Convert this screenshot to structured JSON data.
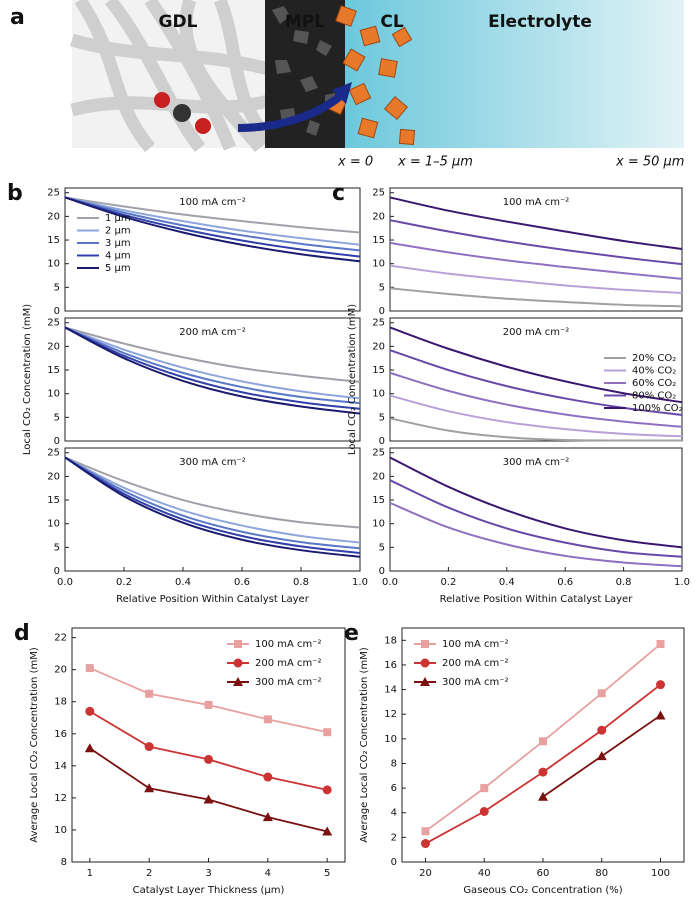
{
  "illustration": {
    "panel": "a",
    "regions": [
      "GDL",
      "MPL",
      "CL",
      "Electrolyte"
    ],
    "positions": [
      "x = 0",
      "x = 1–5 μm",
      "x = 50 μm"
    ]
  },
  "chart_data": [
    {
      "type": "line",
      "panel": "b",
      "title": "100 mA cm⁻²",
      "x": [
        0,
        0.2,
        0.4,
        0.6,
        0.8,
        1
      ],
      "xlim": [
        0,
        1
      ],
      "ylim": [
        0,
        26
      ],
      "yticks": [
        0,
        5,
        10,
        15,
        20,
        25
      ],
      "smooth": true,
      "legend": "upper left",
      "series": [
        {
          "name": "1 μm",
          "color": "#a0a0a8",
          "values": [
            24,
            22.1,
            20.4,
            19.0,
            17.7,
            16.6
          ]
        },
        {
          "name": "2 μm",
          "color": "#8ea6dc",
          "values": [
            24,
            21.3,
            19.0,
            17.0,
            15.4,
            14.0
          ]
        },
        {
          "name": "3 μm",
          "color": "#5a78c8",
          "values": [
            24,
            20.8,
            18.1,
            16.0,
            14.2,
            12.8
          ]
        },
        {
          "name": "4 μm",
          "color": "#3040a8",
          "values": [
            24,
            20.3,
            17.3,
            14.9,
            13.0,
            11.5
          ]
        },
        {
          "name": "5 μm",
          "color": "#1a1a70",
          "values": [
            24,
            19.9,
            16.6,
            14.0,
            12.0,
            10.5
          ]
        }
      ]
    },
    {
      "type": "line",
      "title": "200 mA cm⁻²",
      "y_label": "Local CO₂ Concentration (mM)",
      "x": [
        0,
        0.2,
        0.4,
        0.6,
        0.8,
        1
      ],
      "xlim": [
        0,
        1
      ],
      "ylim": [
        0,
        26
      ],
      "yticks": [
        0,
        5,
        10,
        15,
        20,
        25
      ],
      "smooth": true,
      "series": [
        {
          "color": "#a0a0a8",
          "values": [
            24,
            20.6,
            17.7,
            15.4,
            13.8,
            12.5
          ]
        },
        {
          "color": "#8ea6dc",
          "values": [
            24,
            19.3,
            15.5,
            12.6,
            10.5,
            9.0
          ]
        },
        {
          "color": "#5a78c8",
          "values": [
            24,
            18.6,
            14.4,
            11.4,
            9.3,
            8.0
          ]
        },
        {
          "color": "#3040a8",
          "values": [
            24,
            18.0,
            13.5,
            10.3,
            8.2,
            6.8
          ]
        },
        {
          "color": "#1a1a70",
          "values": [
            24,
            17.5,
            12.7,
            9.4,
            7.3,
            5.8
          ]
        }
      ]
    },
    {
      "type": "line",
      "title": "300 mA cm⁻²",
      "x_label": "Relative Position Within Catalyst Layer",
      "x": [
        0,
        0.2,
        0.4,
        0.6,
        0.8,
        1
      ],
      "xlim": [
        0,
        1
      ],
      "ylim": [
        0,
        26
      ],
      "yticks": [
        0,
        5,
        10,
        15,
        20,
        25
      ],
      "xticks": [
        {
          "value": 0,
          "label": "0.0"
        },
        {
          "value": 0.2,
          "label": "0.2"
        },
        {
          "value": 0.4,
          "label": "0.4"
        },
        {
          "value": 0.6,
          "label": "0.6"
        },
        {
          "value": 0.8,
          "label": "0.8"
        },
        {
          "value": 1,
          "label": "1.0"
        }
      ],
      "smooth": true,
      "series": [
        {
          "color": "#a0a0a8",
          "values": [
            24,
            19.0,
            15.0,
            12.2,
            10.3,
            9.2
          ]
        },
        {
          "color": "#8ea6dc",
          "values": [
            24,
            17.6,
            12.8,
            9.6,
            7.4,
            6.0
          ]
        },
        {
          "color": "#5a78c8",
          "values": [
            24,
            16.9,
            11.7,
            8.3,
            6.1,
            4.8
          ]
        },
        {
          "color": "#3040a8",
          "values": [
            24,
            16.3,
            10.9,
            7.4,
            5.2,
            3.8
          ]
        },
        {
          "color": "#1a1a70",
          "values": [
            24,
            15.8,
            10.2,
            6.6,
            4.4,
            3.0
          ]
        }
      ]
    },
    {
      "type": "line",
      "panel": "c",
      "title": "100 mA cm⁻²",
      "x": [
        0,
        0.2,
        0.4,
        0.6,
        0.8,
        1
      ],
      "xlim": [
        0,
        1
      ],
      "ylim": [
        0,
        26
      ],
      "yticks": [
        0,
        5,
        10,
        15,
        20,
        25
      ],
      "smooth": true,
      "series": [
        {
          "color": "#a0a0a0",
          "values": [
            4.8,
            3.6,
            2.6,
            1.9,
            1.3,
            1.0
          ]
        },
        {
          "color": "#b8a0d8",
          "values": [
            9.6,
            7.9,
            6.6,
            5.4,
            4.5,
            3.8
          ]
        },
        {
          "color": "#9070c0",
          "values": [
            14.4,
            12.4,
            10.7,
            9.3,
            8.0,
            6.8
          ]
        },
        {
          "color": "#6848a8",
          "values": [
            19.2,
            16.8,
            14.7,
            12.9,
            11.3,
            9.9
          ]
        },
        {
          "color": "#3a1870",
          "values": [
            24,
            21.2,
            18.9,
            16.8,
            14.8,
            13.1
          ]
        }
      ]
    },
    {
      "type": "line",
      "title": "200 mA cm⁻²",
      "y_label": "Local CO₂ Concentration (mM)",
      "x": [
        0,
        0.2,
        0.4,
        0.6,
        0.8,
        1
      ],
      "xlim": [
        0,
        1
      ],
      "ylim": [
        0,
        26
      ],
      "yticks": [
        0,
        5,
        10,
        15,
        20,
        25
      ],
      "smooth": true,
      "legend": "upper right",
      "series": [
        {
          "name": "20% CO₂",
          "color": "#a0a0a0",
          "values": [
            4.8,
            2.2,
            0.8,
            0.2,
            0.1,
            0.1
          ]
        },
        {
          "name": "40% CO₂",
          "color": "#b8a0d8",
          "values": [
            9.6,
            6.3,
            4.0,
            2.5,
            1.5,
            1.0
          ]
        },
        {
          "name": "60% CO₂",
          "color": "#9070c0",
          "values": [
            14.4,
            10.6,
            7.7,
            5.6,
            4.1,
            3.0
          ]
        },
        {
          "name": "80% CO₂",
          "color": "#6848a8",
          "values": [
            19.2,
            15.0,
            11.6,
            9.0,
            7.0,
            5.5
          ]
        },
        {
          "name": "100% CO₂",
          "color": "#3a1870",
          "values": [
            24,
            19.5,
            15.7,
            12.6,
            10.1,
            8.2
          ]
        }
      ]
    },
    {
      "type": "line",
      "title": "300 mA cm⁻²",
      "x_label": "Relative Position Within Catalyst Layer",
      "x": [
        0,
        0.2,
        0.4,
        0.6,
        0.8,
        1
      ],
      "xlim": [
        0,
        1
      ],
      "ylim": [
        0,
        26
      ],
      "yticks": [
        0,
        5,
        10,
        15,
        20,
        25
      ],
      "xticks": [
        {
          "value": 0,
          "label": "0.0"
        },
        {
          "value": 0.2,
          "label": "0.2"
        },
        {
          "value": 0.4,
          "label": "0.4"
        },
        {
          "value": 0.6,
          "label": "0.6"
        },
        {
          "value": 0.8,
          "label": "0.8"
        },
        {
          "value": 1,
          "label": "1.0"
        }
      ],
      "smooth": true,
      "series": [
        {
          "color": "#9070c0",
          "values": [
            14.4,
            9.2,
            5.6,
            3.2,
            1.8,
            1.0
          ]
        },
        {
          "color": "#6848a8",
          "values": [
            19.2,
            13.4,
            9.0,
            6.0,
            4.0,
            3.0
          ]
        },
        {
          "color": "#3a1870",
          "values": [
            24,
            17.8,
            12.8,
            9.0,
            6.5,
            5.0
          ]
        }
      ]
    },
    {
      "type": "line",
      "panel": "d",
      "x_label": "Catalyst Layer Thickness (μm)",
      "y_label": "Average Local CO₂ Concentration (mM)",
      "x": [
        1,
        2,
        3,
        4,
        5
      ],
      "xlim": [
        0.7,
        5.3
      ],
      "xticks": [
        1,
        2,
        3,
        4,
        5
      ],
      "ylim": [
        8,
        22.6
      ],
      "yticks": [
        8,
        10,
        12,
        14,
        16,
        18,
        20,
        22
      ],
      "legend": "upper right",
      "series": [
        {
          "name": "100 mA cm⁻²",
          "color": "#e8a0a0",
          "marker": "square",
          "values": [
            20.1,
            18.5,
            17.8,
            16.9,
            16.1
          ]
        },
        {
          "name": "200 mA cm⁻²",
          "color": "#cc3333",
          "marker": "circle",
          "values": [
            17.4,
            15.2,
            14.4,
            13.3,
            12.5
          ]
        },
        {
          "name": "300 mA cm⁻²",
          "color": "#7a1010",
          "marker": "triangle",
          "values": [
            15.1,
            12.6,
            11.9,
            10.8,
            9.9
          ]
        }
      ]
    },
    {
      "type": "line",
      "panel": "e",
      "x_label": "Gaseous CO₂ Concentration (%)",
      "y_label": "Average Local CO₂ Concentration (mM)",
      "x": [
        20,
        40,
        60,
        80,
        100
      ],
      "xlim": [
        12,
        108
      ],
      "xticks": [
        20,
        40,
        60,
        80,
        100
      ],
      "ylim": [
        0,
        19
      ],
      "yticks": [
        0,
        2,
        4,
        6,
        8,
        10,
        12,
        14,
        16,
        18
      ],
      "legend": "upper left",
      "series": [
        {
          "name": "100 mA cm⁻²",
          "color": "#e8a0a0",
          "marker": "square",
          "values": [
            2.5,
            6.0,
            9.8,
            13.7,
            17.7
          ]
        },
        {
          "name": "200 mA cm⁻²",
          "color": "#cc3333",
          "marker": "circle",
          "values": [
            1.5,
            4.1,
            7.3,
            10.7,
            14.4
          ]
        },
        {
          "name": "300 mA cm⁻²",
          "color": "#7a1010",
          "marker": "triangle",
          "values": [
            null,
            null,
            5.3,
            8.6,
            11.9
          ]
        }
      ]
    }
  ]
}
